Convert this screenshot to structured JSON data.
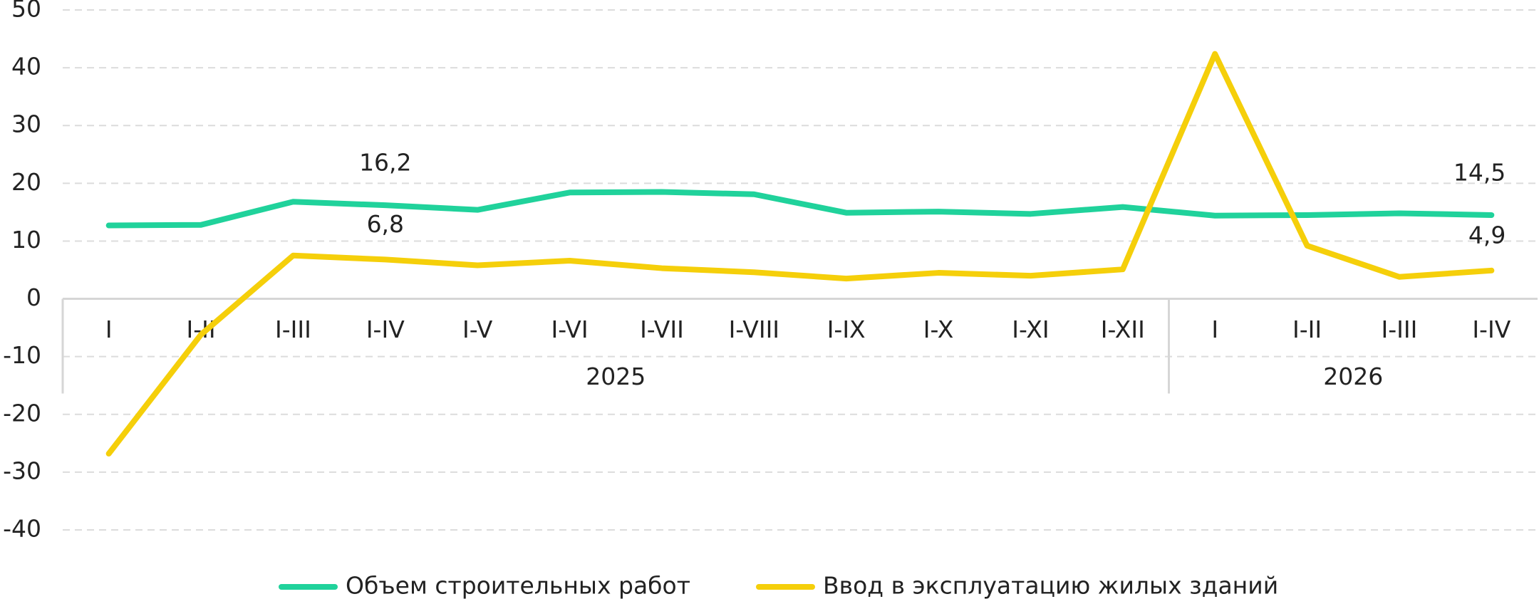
{
  "chart_data": {
    "type": "line",
    "categories": [
      "I",
      "I-II",
      "I-III",
      "I-IV",
      "I-V",
      "I-VI",
      "I-VII",
      "I-VIII",
      "I-IX",
      "I-X",
      "I-XI",
      "I-XII",
      "I",
      "I-II",
      "I-III",
      "I-IV"
    ],
    "category_groups": [
      {
        "name": "2025",
        "size": 12
      },
      {
        "name": "2026",
        "size": 4
      }
    ],
    "series": [
      {
        "name": "Объем строительных работ",
        "color": "#20d29b",
        "values": [
          12.7,
          12.8,
          16.8,
          16.2,
          15.4,
          18.4,
          18.5,
          18.1,
          14.9,
          15.1,
          14.7,
          15.9,
          14.4,
          14.5,
          14.8,
          14.5
        ],
        "value_labels": [
          null,
          null,
          null,
          "16,2",
          null,
          null,
          null,
          null,
          null,
          null,
          null,
          null,
          null,
          null,
          null,
          "14,5"
        ]
      },
      {
        "name": "Ввод в эксплуатацию жилых зданий",
        "color": "#f5cf0a",
        "values": [
          -26.8,
          -6.2,
          7.5,
          6.8,
          5.8,
          6.6,
          5.3,
          4.6,
          3.5,
          4.5,
          4.0,
          5.1,
          42.4,
          9.2,
          3.8,
          4.9
        ],
        "value_labels": [
          null,
          null,
          null,
          "6,8",
          null,
          null,
          null,
          null,
          null,
          null,
          null,
          null,
          null,
          null,
          null,
          "4,9"
        ]
      }
    ],
    "ylim": [
      -40,
      50
    ],
    "yticks": [
      -40,
      -30,
      -20,
      -10,
      0,
      10,
      20,
      30,
      40,
      50
    ],
    "grid": true
  }
}
